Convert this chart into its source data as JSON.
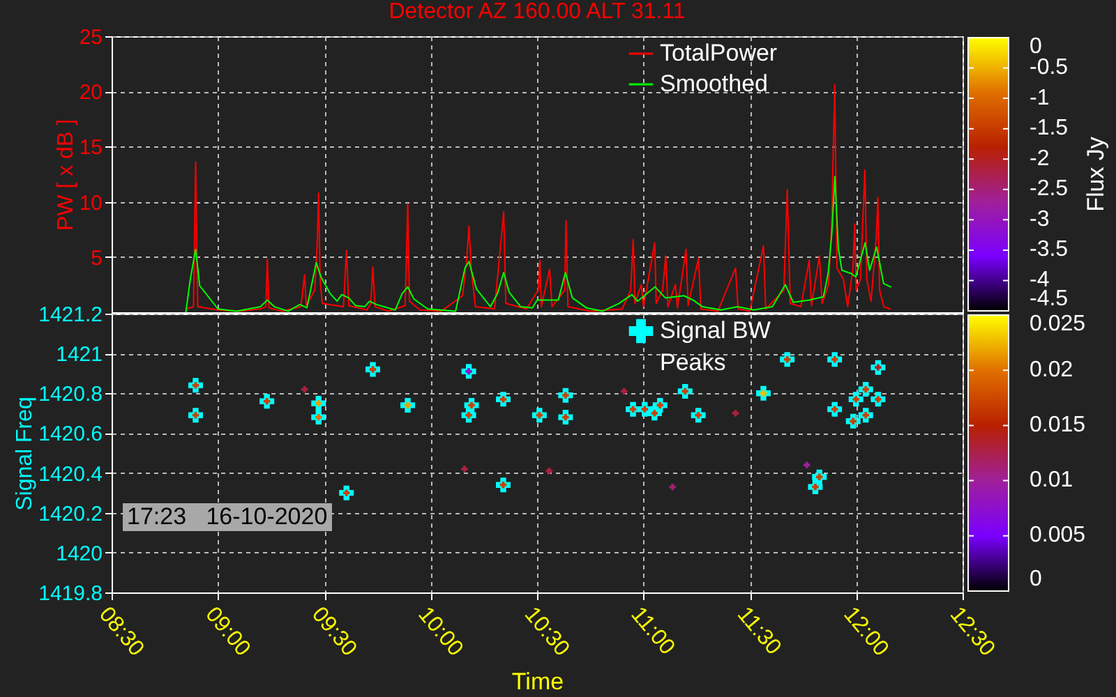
{
  "chart_data": [
    {
      "type": "line",
      "title": "Detector AZ 160.00  ALT 31.11",
      "ylabel": "PW [ x dB ]",
      "clabel": "Flux Jy",
      "clim": [
        -4.5,
        0
      ],
      "cticks": [
        0,
        -0.5,
        -1,
        -1.5,
        -2,
        -2.5,
        -3,
        -3.5,
        -4,
        -4.5
      ],
      "xlim": [
        8.5,
        12.5
      ],
      "xticks": [
        8.5,
        9,
        9.5,
        10,
        10.5,
        11,
        11.5,
        12,
        12.5
      ],
      "ylim": [
        0,
        25
      ],
      "yticks": [
        5,
        10,
        15,
        20,
        25
      ],
      "grid": true,
      "legend": "top right",
      "tick_labels": "y",
      "series": [
        {
          "name": "TotalPower",
          "color": "#ff0000",
          "x": [
            8.85,
            8.885,
            8.895,
            8.905,
            9.0,
            9.1,
            9.2,
            9.225,
            9.232,
            9.24,
            9.3,
            9.39,
            9.407,
            9.415,
            9.455,
            9.466,
            9.473,
            9.48,
            9.49,
            9.59,
            9.604,
            9.615,
            9.7,
            9.718,
            9.728,
            9.738,
            9.8,
            9.88,
            9.892,
            9.9,
            9.95,
            10.05,
            10.15,
            10.17,
            10.18,
            10.19,
            10.21,
            10.3,
            10.333,
            10.343,
            10.353,
            10.45,
            10.505,
            10.513,
            10.52,
            10.559,
            10.57,
            10.63,
            10.636,
            10.645,
            10.75,
            10.9,
            10.94,
            10.952,
            10.96,
            10.99,
            11.0,
            11.053,
            11.06,
            11.09,
            11.105,
            11.115,
            11.15,
            11.16,
            11.2,
            11.21,
            11.259,
            11.27,
            11.35,
            11.433,
            11.445,
            11.5,
            11.564,
            11.575,
            11.66,
            11.676,
            11.69,
            11.74,
            11.779,
            11.79,
            11.827,
            11.84,
            11.87,
            11.885,
            11.899,
            11.91,
            11.94,
            11.96,
            11.985,
            11.993,
            12.0,
            12.02,
            12.041,
            12.05,
            12.07,
            12.095,
            12.102,
            12.11,
            12.13,
            12.16
          ],
          "values": [
            0.3,
            0.5,
            13.6,
            0.5,
            0.2,
            0.1,
            0.3,
            0.5,
            4.8,
            0.4,
            0.1,
            0.5,
            3.4,
            0.6,
            2.0,
            6.0,
            10.8,
            3.0,
            0.8,
            0.5,
            5.6,
            0.6,
            0.2,
            0.8,
            4.1,
            0.5,
            0.1,
            0.6,
            9.8,
            1.0,
            0.2,
            0.1,
            1.5,
            5.0,
            7.8,
            4.0,
            0.5,
            0.3,
            7.0,
            9.1,
            0.8,
            0.3,
            2.0,
            4.7,
            0.5,
            3.9,
            0.5,
            2.0,
            8.3,
            0.5,
            0.1,
            0.3,
            2.0,
            6.6,
            0.8,
            2.5,
            0.5,
            6.3,
            0.8,
            2.0,
            5.1,
            0.5,
            2.5,
            0.4,
            5.7,
            0.6,
            4.9,
            0.3,
            0.1,
            4.0,
            0.3,
            0.1,
            6.0,
            0.3,
            2.0,
            11.1,
            0.8,
            0.5,
            4.7,
            0.6,
            5.1,
            0.8,
            2.5,
            8.0,
            20.6,
            4.0,
            3.0,
            0.5,
            4.0,
            8.0,
            2.0,
            3.0,
            12.9,
            3.0,
            1.0,
            7.0,
            10.4,
            2.0,
            0.5,
            0.3
          ]
        },
        {
          "name": "Smoothed",
          "color": "#00ff00",
          "x": [
            8.849,
            8.87,
            8.895,
            8.914,
            9.0,
            9.088,
            9.2,
            9.232,
            9.265,
            9.33,
            9.385,
            9.418,
            9.462,
            9.484,
            9.527,
            9.56,
            9.582,
            9.615,
            9.647,
            9.69,
            9.712,
            9.745,
            9.833,
            9.866,
            9.892,
            9.921,
            9.986,
            10.117,
            10.161,
            10.18,
            10.215,
            10.281,
            10.314,
            10.343,
            10.369,
            10.423,
            10.478,
            10.5,
            10.546,
            10.6,
            10.633,
            10.666,
            10.732,
            10.808,
            10.885,
            10.946,
            10.972,
            11.055,
            11.103,
            11.19,
            11.234,
            11.278,
            11.365,
            11.442,
            11.519,
            11.606,
            11.667,
            11.704,
            11.78,
            11.846,
            11.868,
            11.885,
            11.9,
            11.916,
            11.933,
            11.977,
            11.998,
            12.042,
            12.063,
            12.096,
            12.129,
            12.162
          ],
          "values": [
            0.0,
            3.0,
            5.7,
            2.4,
            0.3,
            0.1,
            0.5,
            1.1,
            0.5,
            0.1,
            0.7,
            0.4,
            4.5,
            3.2,
            1.7,
            1.0,
            1.6,
            1.3,
            0.6,
            0.5,
            1.0,
            0.7,
            0.2,
            1.7,
            2.3,
            1.2,
            0.3,
            0.1,
            4.0,
            4.6,
            2.1,
            0.5,
            1.7,
            3.6,
            1.8,
            0.5,
            0.4,
            1.1,
            1.1,
            1.1,
            3.6,
            1.3,
            0.4,
            0.1,
            0.8,
            1.6,
            1.0,
            2.3,
            1.3,
            1.5,
            1.1,
            0.5,
            0.2,
            0.5,
            0.2,
            0.5,
            2.5,
            0.9,
            1.1,
            1.4,
            3.5,
            7.0,
            12.3,
            5.8,
            3.8,
            3.5,
            3.2,
            6.3,
            3.8,
            5.9,
            2.6,
            2.3
          ]
        }
      ]
    },
    {
      "type": "scatter",
      "xlabel": "Time",
      "ylabel": "Signal Freq",
      "clim": [
        0,
        0.025
      ],
      "cticks": [
        0,
        0.005,
        0.01,
        0.015,
        0.02,
        0.025
      ],
      "xlim": [
        8.5,
        12.5
      ],
      "xticks": [
        {
          "value": 8.5,
          "label": "08:30"
        },
        {
          "value": 9,
          "label": "09:00"
        },
        {
          "value": 9.5,
          "label": "09:30"
        },
        {
          "value": 10,
          "label": "10:00"
        },
        {
          "value": 10.5,
          "label": "10:30"
        },
        {
          "value": 11,
          "label": "11:00"
        },
        {
          "value": 11.5,
          "label": "11:30"
        },
        {
          "value": 12,
          "label": "12:00"
        },
        {
          "value": 12.5,
          "label": "12:30"
        }
      ],
      "ylim": [
        1419.8,
        1421.2
      ],
      "yticks": [
        1419.8,
        1420,
        1420.2,
        1420.4,
        1420.6,
        1420.8,
        1421,
        1421.2
      ],
      "grid": true,
      "legend": "top right",
      "marker": "cross",
      "annotations": [
        "17:23   16-10-2020"
      ],
      "series": [
        {
          "name": "Signal BW",
          "color": "#00ffff",
          "x": [
            8.895,
            8.895,
            9.23,
            9.473,
            9.473,
            9.604,
            9.728,
            9.892,
            10.179,
            10.179,
            10.192,
            10.341,
            10.341,
            10.511,
            10.634,
            10.634,
            10.951,
            11.006,
            11.052,
            11.078,
            11.196,
            11.258,
            11.564,
            11.676,
            11.808,
            11.827,
            11.899,
            11.899,
            11.986,
            11.999,
            12.045,
            12.045,
            12.103,
            12.103
          ],
          "values": [
            1420.84,
            1420.69,
            1420.76,
            1420.75,
            1420.68,
            1420.3,
            1420.92,
            1420.74,
            1420.91,
            1420.69,
            1420.74,
            1420.77,
            1420.34,
            1420.69,
            1420.79,
            1420.68,
            1420.72,
            1420.72,
            1420.7,
            1420.74,
            1420.81,
            1420.69,
            1420.8,
            1420.97,
            1420.33,
            1420.38,
            1420.97,
            1420.72,
            1420.66,
            1420.77,
            1420.82,
            1420.69,
            1420.93,
            1420.77
          ]
        },
        {
          "name": "Peaks",
          "x": [
            8.895,
            8.895,
            9.23,
            9.407,
            9.473,
            9.473,
            9.604,
            9.728,
            9.892,
            10.159,
            10.179,
            10.179,
            10.192,
            10.341,
            10.341,
            10.511,
            10.557,
            10.634,
            10.634,
            10.909,
            10.951,
            11.006,
            11.052,
            11.078,
            11.137,
            11.196,
            11.258,
            11.433,
            11.564,
            11.676,
            11.768,
            11.808,
            11.827,
            11.899,
            11.899,
            11.986,
            11.999,
            12.045,
            12.045,
            12.103,
            12.103
          ],
          "values": [
            1420.84,
            1420.69,
            1420.76,
            1420.82,
            1420.75,
            1420.68,
            1420.3,
            1420.92,
            1420.74,
            1420.42,
            1420.91,
            1420.69,
            1420.74,
            1420.77,
            1420.34,
            1420.69,
            1420.41,
            1420.79,
            1420.68,
            1420.81,
            1420.72,
            1420.72,
            1420.7,
            1420.74,
            1420.33,
            1420.81,
            1420.69,
            1420.7,
            1420.8,
            1420.97,
            1420.44,
            1420.33,
            1420.38,
            1420.97,
            1420.72,
            1420.66,
            1420.77,
            1420.82,
            1420.69,
            1420.93,
            1420.77
          ],
          "colors": [
            "#c84000",
            "#c84000",
            "#c84000",
            "#ae203e",
            "#eaa000",
            "#e07000",
            "#c84000",
            "#c84000",
            "#eaa000",
            "#ae203e",
            "#8a10c0",
            "#c84000",
            "#c84000",
            "#c84000",
            "#c84000",
            "#c84000",
            "#ae203e",
            "#c84000",
            "#c84000",
            "#ae203e",
            "#c84000",
            "#c84000",
            "#c84000",
            "#c84000",
            "#a02070",
            "#c84000",
            "#c84000",
            "#ae203e",
            "#f0c000",
            "#c84000",
            "#9a20a0",
            "#c84000",
            "#c84000",
            "#c84000",
            "#c84000",
            "#c84000",
            "#c84000",
            "#c84000",
            "#c84000",
            "#b82020",
            "#c84000"
          ]
        }
      ]
    }
  ]
}
